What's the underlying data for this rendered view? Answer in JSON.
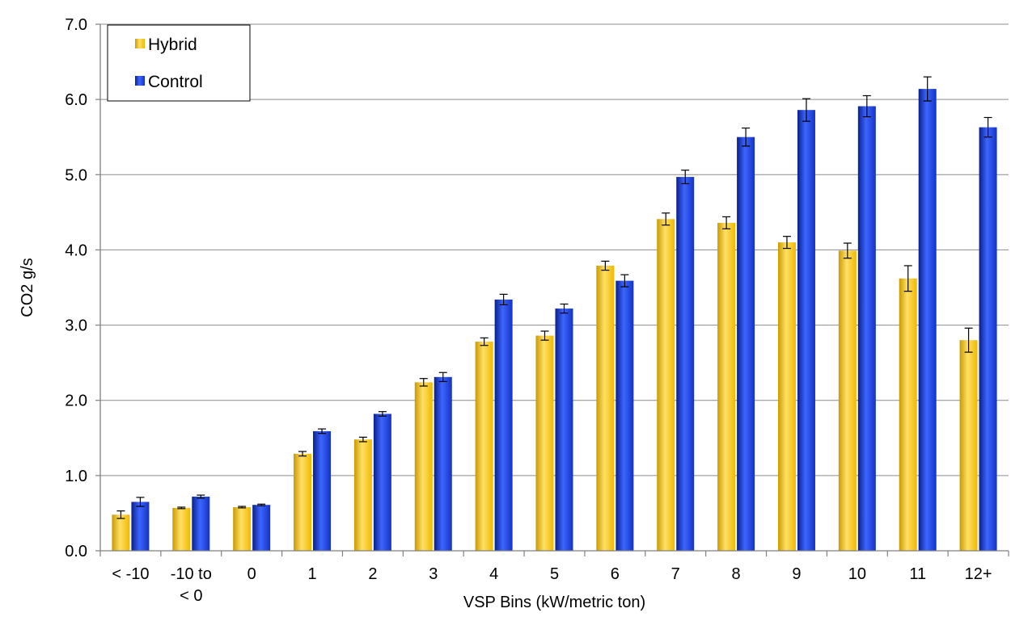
{
  "chart_data": {
    "type": "bar",
    "xlabel": "VSP Bins (kW/metric ton)",
    "ylabel": "CO2 g/s",
    "ylim": [
      0,
      7
    ],
    "yticks": [
      "0.0",
      "1.0",
      "2.0",
      "3.0",
      "4.0",
      "5.0",
      "6.0",
      "7.0"
    ],
    "grid": true,
    "legend_position": "top-left",
    "categories": [
      [
        "< -10"
      ],
      [
        "-10 to",
        "< 0"
      ],
      [
        "0"
      ],
      [
        "1"
      ],
      [
        "2"
      ],
      [
        "3"
      ],
      [
        "4"
      ],
      [
        "5"
      ],
      [
        "6"
      ],
      [
        "7"
      ],
      [
        "8"
      ],
      [
        "9"
      ],
      [
        "10"
      ],
      [
        "11"
      ],
      [
        "12+"
      ]
    ],
    "series": [
      {
        "name": "Hybrid",
        "color": "#f5c400",
        "values": [
          0.48,
          0.57,
          0.58,
          1.29,
          1.48,
          2.24,
          2.78,
          2.86,
          3.79,
          4.41,
          4.36,
          4.1,
          3.99,
          3.62,
          2.8
        ],
        "errors": [
          0.05,
          0.01,
          0.01,
          0.03,
          0.03,
          0.05,
          0.05,
          0.06,
          0.06,
          0.08,
          0.08,
          0.08,
          0.1,
          0.17,
          0.16
        ]
      },
      {
        "name": "Control",
        "color": "#1a3fd8",
        "values": [
          0.65,
          0.72,
          0.61,
          1.59,
          1.82,
          2.31,
          3.34,
          3.22,
          3.59,
          4.97,
          5.5,
          5.86,
          5.91,
          6.14,
          5.63
        ],
        "errors": [
          0.06,
          0.02,
          0.01,
          0.03,
          0.03,
          0.06,
          0.07,
          0.06,
          0.08,
          0.09,
          0.12,
          0.15,
          0.14,
          0.16,
          0.13
        ]
      }
    ]
  }
}
